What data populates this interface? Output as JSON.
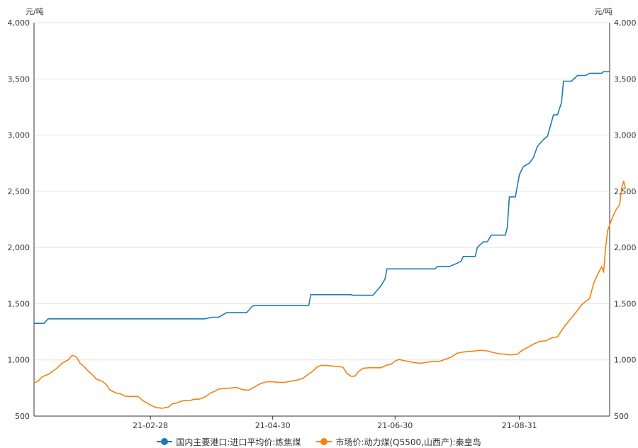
{
  "chart_data": {
    "type": "line",
    "y_unit_left": "元/吨",
    "y_unit_right": "元/吨",
    "ylim": [
      500,
      4000
    ],
    "y_ticks": [
      500,
      1000,
      1500,
      2000,
      2500,
      3000,
      3500,
      4000
    ],
    "y_tick_labels": [
      "500",
      "1,000",
      "1,500",
      "2,000",
      "2,500",
      "3,000",
      "3,500",
      "4,000"
    ],
    "x_range": [
      "2021-01-01",
      "2021-10-15"
    ],
    "x_ticks": [
      {
        "date": "2021-02-28",
        "label": "21-02-28"
      },
      {
        "date": "2021-04-30",
        "label": "21-04-30"
      },
      {
        "date": "2021-06-30",
        "label": "21-06-30"
      },
      {
        "date": "2021-08-31",
        "label": "21-08-31"
      }
    ],
    "grid": "horizontal",
    "legend_position": "bottom",
    "series": [
      {
        "name": "国内主要港口:进口平均价:炼焦煤",
        "color": "#1a7bb8",
        "step": true,
        "points": [
          [
            "2021-01-01",
            1325
          ],
          [
            "2021-01-06",
            1325
          ],
          [
            "2021-01-08",
            1365
          ],
          [
            "2021-03-27",
            1365
          ],
          [
            "2021-03-31",
            1380
          ],
          [
            "2021-04-03",
            1380
          ],
          [
            "2021-04-07",
            1420
          ],
          [
            "2021-04-17",
            1420
          ],
          [
            "2021-04-20",
            1480
          ],
          [
            "2021-04-23",
            1485
          ],
          [
            "2021-05-18",
            1485
          ],
          [
            "2021-05-19",
            1580
          ],
          [
            "2021-06-08",
            1580
          ],
          [
            "2021-06-09",
            1575
          ],
          [
            "2021-06-19",
            1575
          ],
          [
            "2021-06-23",
            1660
          ],
          [
            "2021-06-25",
            1720
          ],
          [
            "2021-06-26",
            1810
          ],
          [
            "2021-07-20",
            1810
          ],
          [
            "2021-07-21",
            1830
          ],
          [
            "2021-07-27",
            1830
          ],
          [
            "2021-07-31",
            1860
          ],
          [
            "2021-08-02",
            1880
          ],
          [
            "2021-08-03",
            1920
          ],
          [
            "2021-08-09",
            1920
          ],
          [
            "2021-08-10",
            2000
          ],
          [
            "2021-08-13",
            2050
          ],
          [
            "2021-08-15",
            2050
          ],
          [
            "2021-08-17",
            2110
          ],
          [
            "2021-08-24",
            2110
          ],
          [
            "2021-08-25",
            2180
          ],
          [
            "2021-08-26",
            2450
          ],
          [
            "2021-08-29",
            2450
          ],
          [
            "2021-08-31",
            2650
          ],
          [
            "2021-09-02",
            2720
          ],
          [
            "2021-09-05",
            2750
          ],
          [
            "2021-09-07",
            2800
          ],
          [
            "2021-09-09",
            2900
          ],
          [
            "2021-09-12",
            2960
          ],
          [
            "2021-09-14",
            2990
          ],
          [
            "2021-09-17",
            3180
          ],
          [
            "2021-09-19",
            3180
          ],
          [
            "2021-09-21",
            3290
          ],
          [
            "2021-09-22",
            3480
          ],
          [
            "2021-09-26",
            3480
          ],
          [
            "2021-09-29",
            3530
          ],
          [
            "2021-10-03",
            3530
          ],
          [
            "2021-10-05",
            3550
          ],
          [
            "2021-10-11",
            3550
          ],
          [
            "2021-10-12",
            3565
          ],
          [
            "2021-10-15",
            3565
          ]
        ]
      },
      {
        "name": "市场价:动力煤(Q5500,山西产):秦皇岛",
        "color": "#f5820f",
        "step": false,
        "points": [
          [
            "2021-01-01",
            795
          ],
          [
            "2021-01-03",
            810
          ],
          [
            "2021-01-05",
            850
          ],
          [
            "2021-01-08",
            870
          ],
          [
            "2021-01-12",
            920
          ],
          [
            "2021-01-15",
            970
          ],
          [
            "2021-01-18",
            1000
          ],
          [
            "2021-01-20",
            1040
          ],
          [
            "2021-01-22",
            1030
          ],
          [
            "2021-01-24",
            970
          ],
          [
            "2021-01-26",
            940
          ],
          [
            "2021-01-28",
            900
          ],
          [
            "2021-01-30",
            870
          ],
          [
            "2021-02-01",
            830
          ],
          [
            "2021-02-04",
            810
          ],
          [
            "2021-02-06",
            780
          ],
          [
            "2021-02-08",
            730
          ],
          [
            "2021-02-11",
            705
          ],
          [
            "2021-02-13",
            700
          ],
          [
            "2021-02-15",
            680
          ],
          [
            "2021-02-17",
            675
          ],
          [
            "2021-02-20",
            675
          ],
          [
            "2021-02-22",
            675
          ],
          [
            "2021-02-24",
            640
          ],
          [
            "2021-02-27",
            610
          ],
          [
            "2021-03-01",
            590
          ],
          [
            "2021-03-03",
            575
          ],
          [
            "2021-03-06",
            570
          ],
          [
            "2021-03-09",
            580
          ],
          [
            "2021-03-11",
            610
          ],
          [
            "2021-03-13",
            615
          ],
          [
            "2021-03-15",
            630
          ],
          [
            "2021-03-17",
            640
          ],
          [
            "2021-03-20",
            640
          ],
          [
            "2021-03-22",
            650
          ],
          [
            "2021-03-24",
            650
          ],
          [
            "2021-03-26",
            660
          ],
          [
            "2021-03-28",
            680
          ],
          [
            "2021-03-30",
            705
          ],
          [
            "2021-04-01",
            720
          ],
          [
            "2021-04-03",
            740
          ],
          [
            "2021-04-06",
            745
          ],
          [
            "2021-04-09",
            750
          ],
          [
            "2021-04-12",
            755
          ],
          [
            "2021-04-15",
            735
          ],
          [
            "2021-04-18",
            730
          ],
          [
            "2021-04-21",
            760
          ],
          [
            "2021-04-24",
            790
          ],
          [
            "2021-04-27",
            805
          ],
          [
            "2021-04-30",
            805
          ],
          [
            "2021-05-03",
            800
          ],
          [
            "2021-05-06",
            800
          ],
          [
            "2021-05-09",
            810
          ],
          [
            "2021-05-12",
            820
          ],
          [
            "2021-05-15",
            835
          ],
          [
            "2021-05-18",
            875
          ],
          [
            "2021-05-20",
            900
          ],
          [
            "2021-05-22",
            935
          ],
          [
            "2021-05-24",
            950
          ],
          [
            "2021-05-27",
            950
          ],
          [
            "2021-05-30",
            945
          ],
          [
            "2021-06-02",
            940
          ],
          [
            "2021-06-04",
            935
          ],
          [
            "2021-06-06",
            880
          ],
          [
            "2021-06-08",
            855
          ],
          [
            "2021-06-10",
            855
          ],
          [
            "2021-06-12",
            900
          ],
          [
            "2021-06-14",
            925
          ],
          [
            "2021-06-17",
            930
          ],
          [
            "2021-06-20",
            930
          ],
          [
            "2021-06-23",
            930
          ],
          [
            "2021-06-26",
            955
          ],
          [
            "2021-06-28",
            960
          ],
          [
            "2021-06-30",
            990
          ],
          [
            "2021-07-02",
            1005
          ],
          [
            "2021-07-04",
            995
          ],
          [
            "2021-07-07",
            985
          ],
          [
            "2021-07-10",
            975
          ],
          [
            "2021-07-13",
            970
          ],
          [
            "2021-07-16",
            980
          ],
          [
            "2021-07-19",
            985
          ],
          [
            "2021-07-22",
            985
          ],
          [
            "2021-07-25",
            1005
          ],
          [
            "2021-07-28",
            1025
          ],
          [
            "2021-07-31",
            1060
          ],
          [
            "2021-08-03",
            1070
          ],
          [
            "2021-08-06",
            1075
          ],
          [
            "2021-08-09",
            1080
          ],
          [
            "2021-08-12",
            1085
          ],
          [
            "2021-08-15",
            1080
          ],
          [
            "2021-08-18",
            1065
          ],
          [
            "2021-08-21",
            1055
          ],
          [
            "2021-08-24",
            1050
          ],
          [
            "2021-08-27",
            1045
          ],
          [
            "2021-08-30",
            1050
          ],
          [
            "2021-09-01",
            1080
          ],
          [
            "2021-09-04",
            1110
          ],
          [
            "2021-09-07",
            1140
          ],
          [
            "2021-09-10",
            1165
          ],
          [
            "2021-09-13",
            1170
          ],
          [
            "2021-09-16",
            1195
          ],
          [
            "2021-09-19",
            1205
          ],
          [
            "2021-09-21",
            1260
          ],
          [
            "2021-09-23",
            1310
          ],
          [
            "2021-09-26",
            1375
          ],
          [
            "2021-09-29",
            1440
          ],
          [
            "2021-10-01",
            1490
          ],
          [
            "2021-10-03",
            1520
          ],
          [
            "2021-10-05",
            1545
          ],
          [
            "2021-10-07",
            1680
          ],
          [
            "2021-10-09",
            1760
          ],
          [
            "2021-10-11",
            1830
          ],
          [
            "2021-10-12",
            1780
          ],
          [
            "2021-10-13",
            2000
          ],
          [
            "2021-10-14",
            2150
          ],
          [
            "2021-10-16",
            2250
          ],
          [
            "2021-10-18",
            2330
          ],
          [
            "2021-10-20",
            2380
          ],
          [
            "2021-10-21",
            2530
          ],
          [
            "2021-10-22",
            2590
          ],
          [
            "2021-10-23",
            2520
          ]
        ]
      }
    ]
  }
}
